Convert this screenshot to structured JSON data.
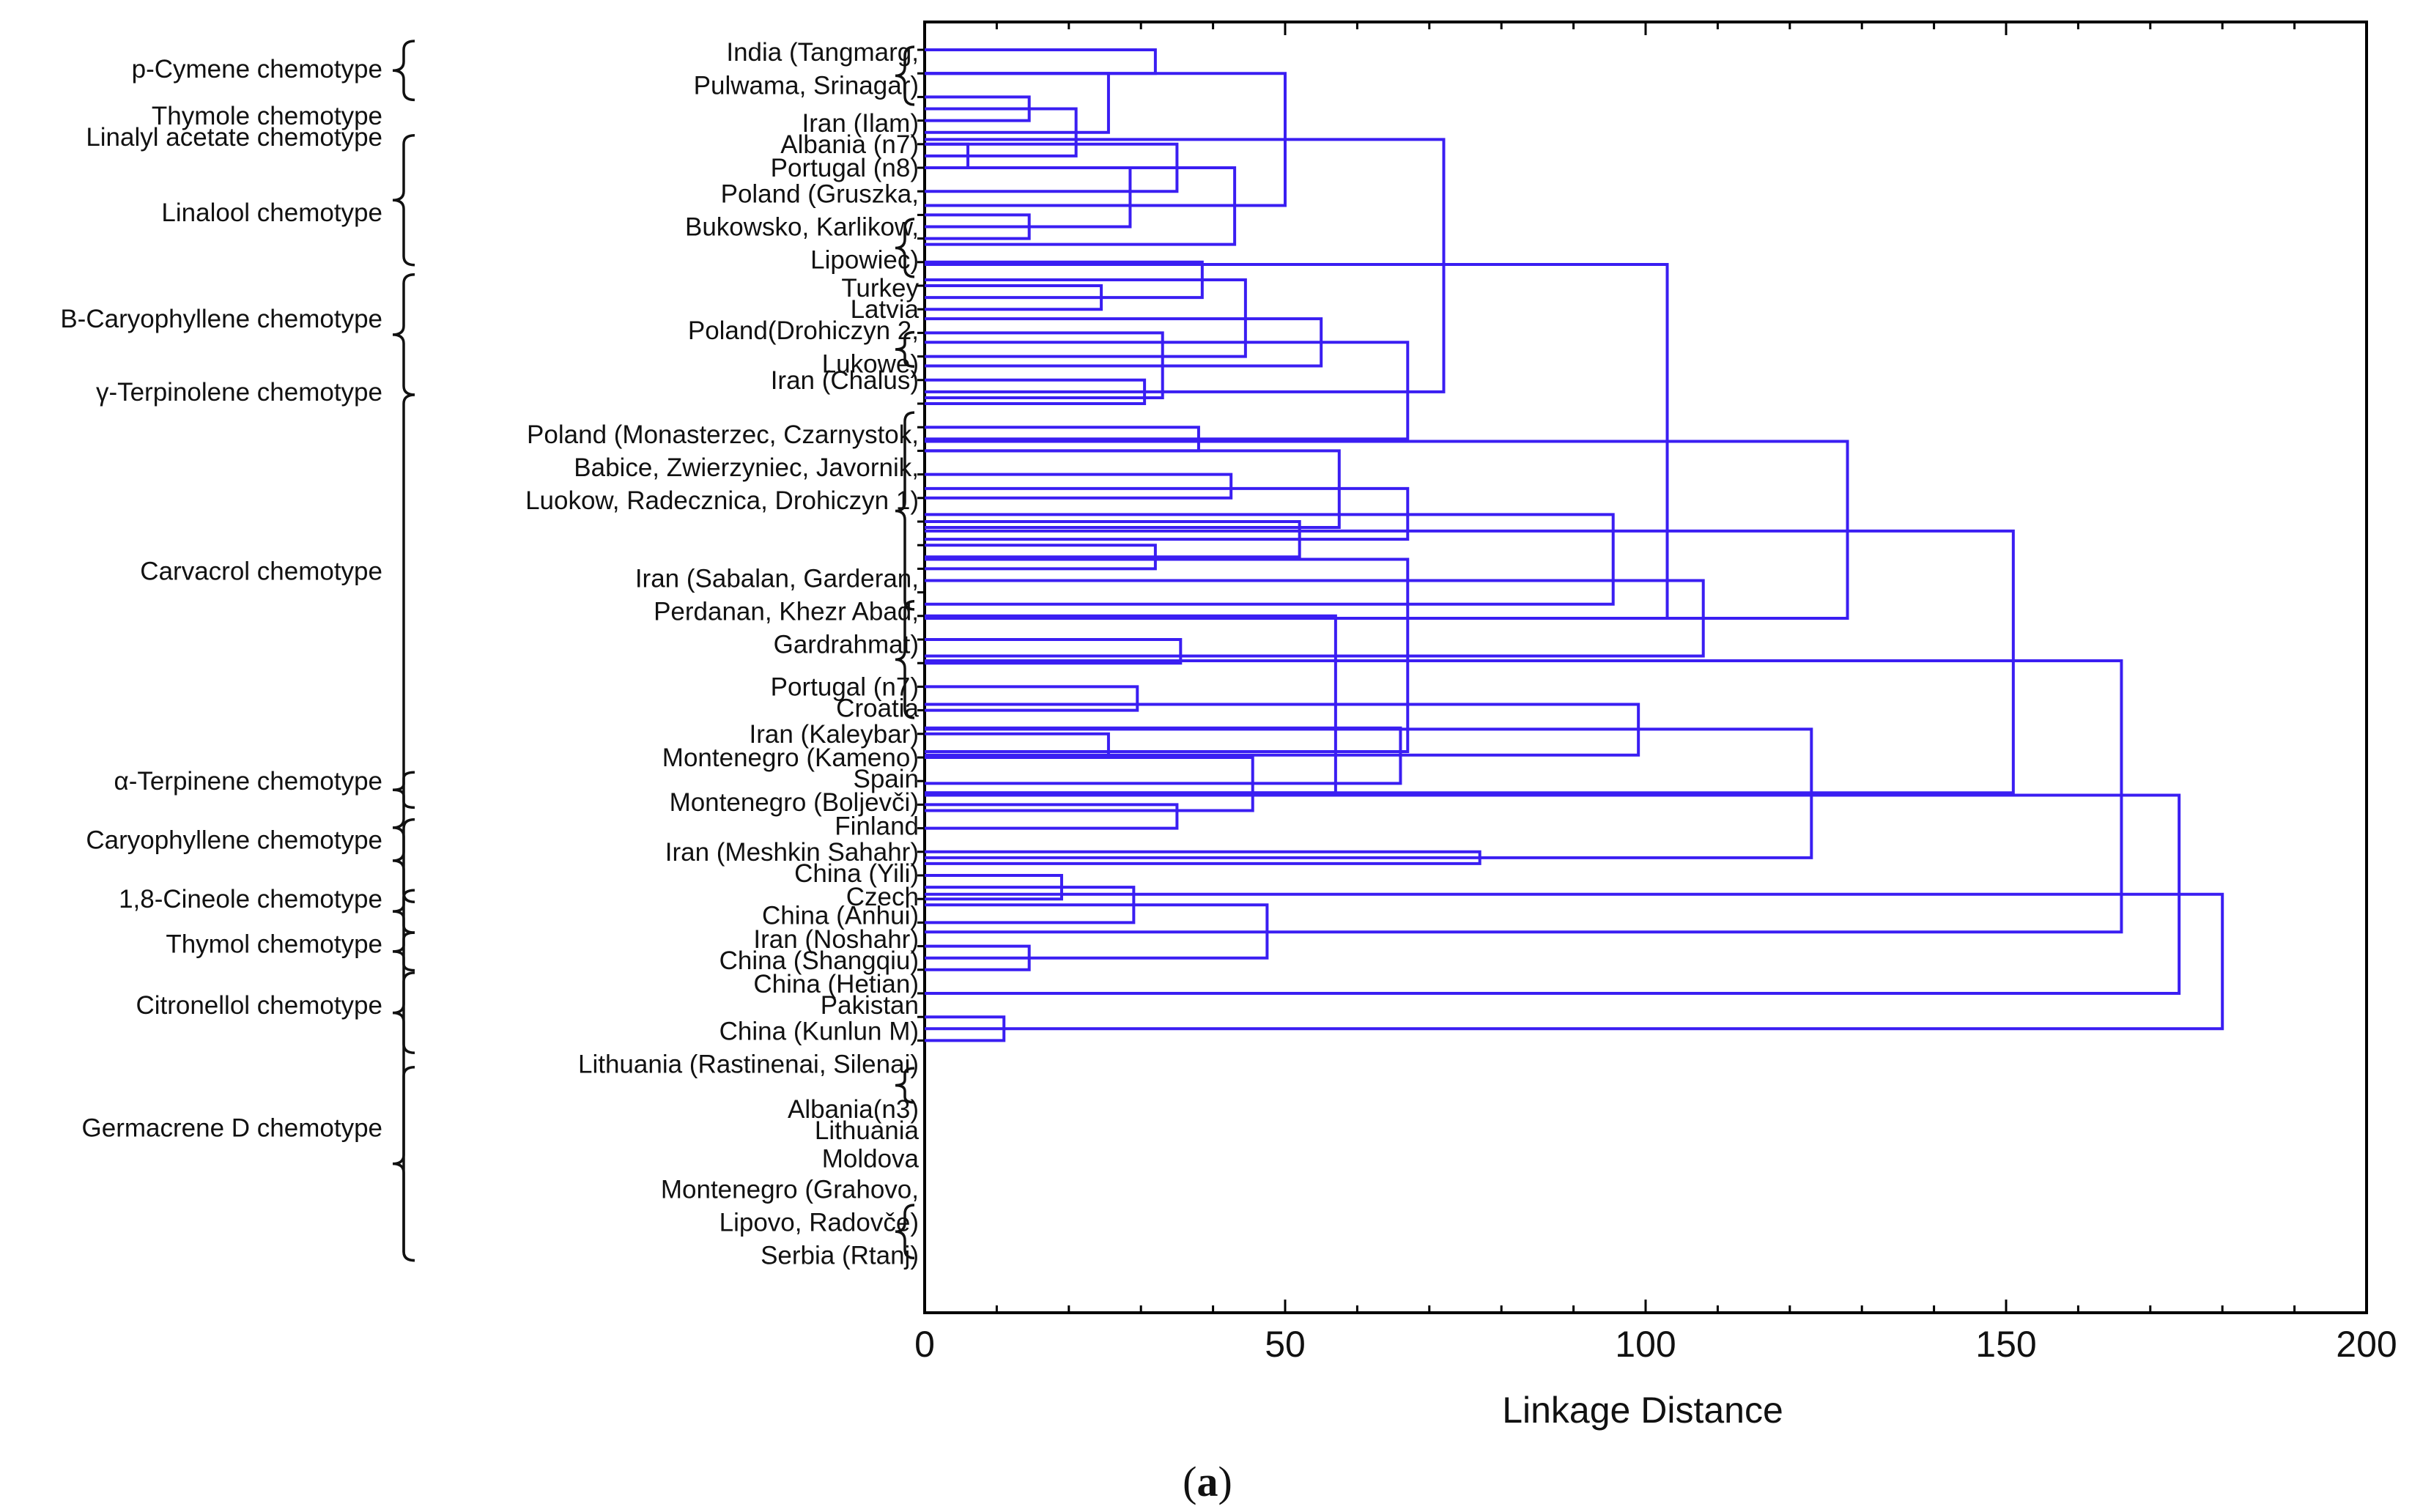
{
  "chart_data": {
    "type": "dendrogram",
    "xlabel": "Linkage Distance",
    "xlim": [
      0,
      200
    ],
    "x_ticks": [
      0,
      50,
      100,
      150,
      200
    ],
    "caption_open": "(",
    "caption_letter": "a",
    "caption_close": ")",
    "colors": {
      "tree": "#3a1ef2",
      "axis": "#000000",
      "text": "#111111"
    },
    "sample_labels": [
      {
        "text": "India (Tangmarg,",
        "row": 0.1
      },
      {
        "text": "Pulwama, Srinagar)",
        "row": 1.5
      },
      {
        "text": "Iran (Ilam)",
        "row": 3.1
      },
      {
        "text": "Albania (n7)",
        "row": 4.0
      },
      {
        "text": "Portugal (n8)",
        "row": 5.0
      },
      {
        "text": "Poland (Gruszka,",
        "row": 6.1
      },
      {
        "text": "Bukowsko, Karlikow,",
        "row": 7.5
      },
      {
        "text": "Lipowiec)",
        "row": 8.9
      },
      {
        "text": "Turkey",
        "row": 10.1
      },
      {
        "text": "Latvia",
        "row": 11.0
      },
      {
        "text": "Poland(Drohiczyn 2,",
        "row": 11.9
      },
      {
        "text": "Lukowe)",
        "row": 13.3
      },
      {
        "text": "Iran (Chalus)",
        "row": 14.0
      },
      {
        "text": "Poland (Monasterzec, Czarnystok,",
        "row": 16.3
      },
      {
        "text": "Babice, Zwierzyniec, Javornik,",
        "row": 17.7
      },
      {
        "text": "Luokow, Radecznica, Drohiczyn 1)",
        "row": 19.1
      },
      {
        "text": "Iran (Sabalan, Garderan,",
        "row": 22.4
      },
      {
        "text": "Perdanan, Khezr Abad,",
        "row": 23.8
      },
      {
        "text": "Gardrahmat)",
        "row": 25.2
      },
      {
        "text": "Portugal (n7)",
        "row": 27.0
      },
      {
        "text": "Croatia",
        "row": 27.9
      },
      {
        "text": "Iran (Kaleybar)",
        "row": 29.0
      },
      {
        "text": "Montenegro (Kameno)",
        "row": 30.0
      },
      {
        "text": "Spain",
        "row": 30.9
      },
      {
        "text": "Montenegro (Boljevči)",
        "row": 31.9
      },
      {
        "text": "Finland",
        "row": 32.9
      },
      {
        "text": "Iran (Meshkin Sahahr)",
        "row": 34.0
      },
      {
        "text": "China (Yili)",
        "row": 34.9
      },
      {
        "text": "Czech",
        "row": 35.9
      },
      {
        "text": "China (Anhui)",
        "row": 36.7
      },
      {
        "text": "Iran (Noshahr)",
        "row": 37.7
      },
      {
        "text": "China (Shangqiu)",
        "row": 38.6
      },
      {
        "text": "China (Hetian)",
        "row": 39.6
      },
      {
        "text": "Pakistan",
        "row": 40.5
      },
      {
        "text": "China (Kunlun M)",
        "row": 41.6
      },
      {
        "text": "Lithuania (Rastinenai, Silenai)",
        "row": 43.0
      },
      {
        "text": "Albania(n3)",
        "row": 44.9
      },
      {
        "text": "Lithuania",
        "row": 45.8
      },
      {
        "text": "Moldova",
        "row": 47.0
      },
      {
        "text": "Montenegro (Grahovo,",
        "row": 48.3
      },
      {
        "text": "Lipovo, Radovče)",
        "row": 49.7
      },
      {
        "text": "Serbia (Rtanj)",
        "row": 51.1
      }
    ],
    "chemotypes": [
      {
        "text": "p-Cymene chemotype",
        "row": 0.8
      },
      {
        "text": "Thymole chemotype",
        "row": 2.8
      },
      {
        "text": "Linalyl acetate chemotype",
        "row": 3.7
      },
      {
        "text": "Linalool chemotype",
        "row": 6.9
      },
      {
        "text": "Β-Caryophyllene chemotype",
        "row": 11.4
      },
      {
        "text": "γ-Terpinolene chemotype",
        "row": 14.5
      },
      {
        "text": "Carvacrol chemotype",
        "row": 22.1
      },
      {
        "text": "α-Terpinene chemotype",
        "row": 31.0
      },
      {
        "text": "Caryophyllene chemotype",
        "row": 33.5
      },
      {
        "text": "1,8-Cineole chemotype",
        "row": 36.0
      },
      {
        "text": "Thymol chemotype",
        "row": 37.9
      },
      {
        "text": "Citronellol chemotype",
        "row": 40.5
      },
      {
        "text": "Germacrene D chemotype",
        "row": 45.7
      }
    ],
    "chemotype_braces": [
      [
        0,
        2
      ],
      [
        4,
        9
      ],
      [
        9.9,
        14.5
      ],
      [
        15,
        51.2
      ],
      [
        31,
        32
      ],
      [
        33,
        36
      ],
      [
        36,
        37.3
      ],
      [
        37.8,
        38.9
      ],
      [
        39.5,
        42.4
      ],
      [
        43.5,
        51.2
      ]
    ],
    "sample_braces": [
      [
        0,
        2.2
      ],
      [
        7.3,
        9.5
      ],
      [
        12.1,
        13.3
      ],
      [
        15.5,
        23.6
      ],
      [
        23.5,
        28.2
      ],
      [
        43.3,
        44.5
      ],
      [
        49.1,
        51.1
      ]
    ],
    "merges": [
      {
        "a": 0,
        "b": 1,
        "h": 32
      },
      {
        "a": 2,
        "b": 3,
        "h": 14.5
      },
      {
        "a": 4,
        "b": 5,
        "h": 6
      },
      {
        "a": 7,
        "b": 8,
        "h": 14.5
      },
      {
        "a": 10,
        "b": 11,
        "h": 24.5
      },
      {
        "a": 14,
        "b": 15,
        "h": 30.5
      },
      {
        "a": 16,
        "b": 17,
        "h": 38
      },
      {
        "a": 18,
        "b": 19,
        "h": 42.5
      },
      {
        "a": 21,
        "b": 22,
        "h": 32
      },
      {
        "a": 25,
        "b": 26,
        "h": 35.5
      },
      {
        "a": 27,
        "b": 28,
        "h": 29.5
      },
      {
        "a": 29,
        "b": 30,
        "h": 25.5
      },
      {
        "a": 32,
        "b": 33,
        "h": 35
      },
      {
        "a": 35,
        "b": 36,
        "h": 19
      },
      {
        "a": 38,
        "b": 39,
        "h": 14.5
      },
      {
        "a": 41,
        "b": 42,
        "h": 11
      },
      {
        "a": 2.5,
        "b": 4.5,
        "h": 21
      },
      {
        "a": 1,
        "b": 3.5,
        "h": 25.5
      },
      {
        "a": 4,
        "b": 6,
        "h": 35
      },
      {
        "a": 5,
        "b": 7.5,
        "h": 28.5
      },
      {
        "a": 9,
        "b": 10.5,
        "h": 38.5
      },
      {
        "a": 12,
        "b": 14.75,
        "h": 33
      },
      {
        "a": 5,
        "b": 8.25,
        "h": 43
      },
      {
        "a": 9.75,
        "b": 13,
        "h": 44.5
      },
      {
        "a": 1,
        "b": 6.6,
        "h": 50
      },
      {
        "a": 11.4,
        "b": 13.4,
        "h": 55
      },
      {
        "a": 12.4,
        "b": 16.5,
        "h": 67
      },
      {
        "a": 17,
        "b": 20.25,
        "h": 57.5
      },
      {
        "a": 20,
        "b": 21.5,
        "h": 52
      },
      {
        "a": 18.6,
        "b": 20.75,
        "h": 67
      },
      {
        "a": 3.8,
        "b": 14.5,
        "h": 72
      },
      {
        "a": 19.7,
        "b": 23.5,
        "h": 95.5
      },
      {
        "a": 21.6,
        "b": 29.75,
        "h": 67
      },
      {
        "a": 22.5,
        "b": 25.7,
        "h": 108
      },
      {
        "a": 24,
        "b": 31.5,
        "h": 57
      },
      {
        "a": 30,
        "b": 32.25,
        "h": 45.5
      },
      {
        "a": 28.75,
        "b": 31.1,
        "h": 66
      },
      {
        "a": 34,
        "b": 34.5,
        "h": 77
      },
      {
        "a": 27.75,
        "b": 29.9,
        "h": 99
      },
      {
        "a": 35.5,
        "b": 37,
        "h": 29
      },
      {
        "a": 36.25,
        "b": 38.5,
        "h": 47.5
      },
      {
        "a": 9.1,
        "b": 24.1,
        "h": 103
      },
      {
        "a": 16.6,
        "b": 24.1,
        "h": 128
      },
      {
        "a": 28.8,
        "b": 34.25,
        "h": 123
      },
      {
        "a": 20.4,
        "b": 31.5,
        "h": 151
      },
      {
        "a": 25.9,
        "b": 37.4,
        "h": 166
      },
      {
        "a": 31.6,
        "b": 40,
        "h": 174
      },
      {
        "a": 35.8,
        "b": 41.5,
        "h": 180
      }
    ],
    "n_leaves": 43
  }
}
